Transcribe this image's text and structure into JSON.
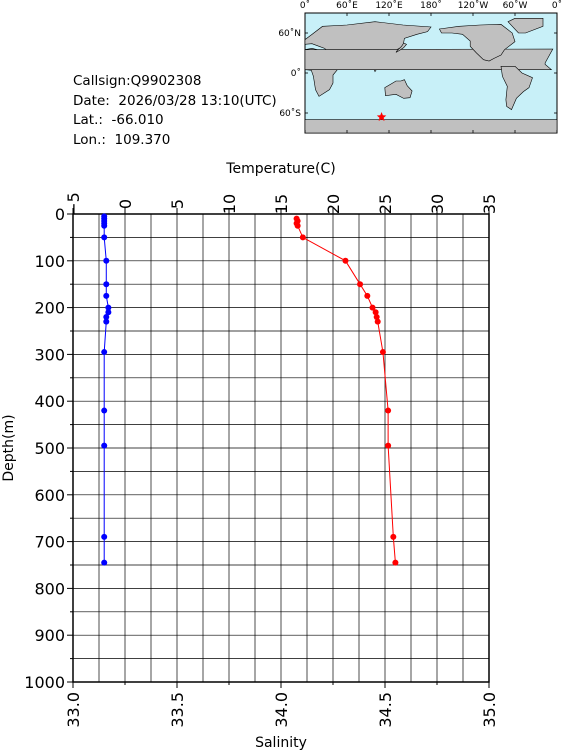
{
  "info": {
    "callsign": "Callsign:Q9902308",
    "date": "Date:  2026/03/28 13:10(UTC)",
    "lat": "Lat.:  -66.010",
    "lon": "Lon.:  109.370"
  },
  "map": {
    "lon_labels": [
      "0˚",
      "60˚E",
      "120˚E",
      "180˚",
      "120˚W",
      "60˚W",
      "0˚"
    ],
    "lat_labels": [
      "60˚N",
      "0˚",
      "60˚S"
    ],
    "station_lon": 109.37,
    "station_lat": -66.01,
    "ocean_color": "#c8f0f8",
    "land_color": "#c0c0c0",
    "marker_color": "#ff0000"
  },
  "chart_data": {
    "type": "line",
    "ylabel": "Depth(m)",
    "ylim": [
      1000,
      0
    ],
    "y_ticks": [
      "0",
      "100",
      "200",
      "300",
      "400",
      "500",
      "600",
      "700",
      "800",
      "900",
      "1000"
    ],
    "x_top": {
      "label": "Temperature(C)",
      "lim": [
        -5,
        35
      ],
      "ticks": [
        "−5",
        "0",
        "5",
        "10",
        "15",
        "20",
        "25",
        "30",
        "35"
      ]
    },
    "x_bottom": {
      "label": "Salinity",
      "lim": [
        33.0,
        35.0
      ],
      "ticks": [
        "33.0",
        "33.5",
        "34.0",
        "34.5",
        "35.0"
      ]
    },
    "grid": true,
    "series": [
      {
        "axis": "temperature",
        "color": "#ff0000",
        "depth": [
          10,
          15,
          20,
          25,
          50,
          100,
          150,
          175,
          200,
          210,
          220,
          230,
          295,
          420,
          495,
          690,
          745
        ],
        "values": [
          16.5,
          16.6,
          16.5,
          16.6,
          17.1,
          21.2,
          22.6,
          23.3,
          23.8,
          24.1,
          24.2,
          24.3,
          24.8,
          25.3,
          25.3,
          25.8,
          26.0
        ]
      },
      {
        "axis": "salinity",
        "color": "#0000ff",
        "depth": [
          5,
          10,
          15,
          20,
          25,
          50,
          100,
          150,
          175,
          200,
          210,
          220,
          230,
          295,
          420,
          495,
          690,
          745
        ],
        "values": [
          33.15,
          33.15,
          33.15,
          33.15,
          33.15,
          33.15,
          33.16,
          33.16,
          33.16,
          33.17,
          33.17,
          33.16,
          33.16,
          33.15,
          33.15,
          33.15,
          33.15,
          33.15
        ]
      }
    ]
  }
}
